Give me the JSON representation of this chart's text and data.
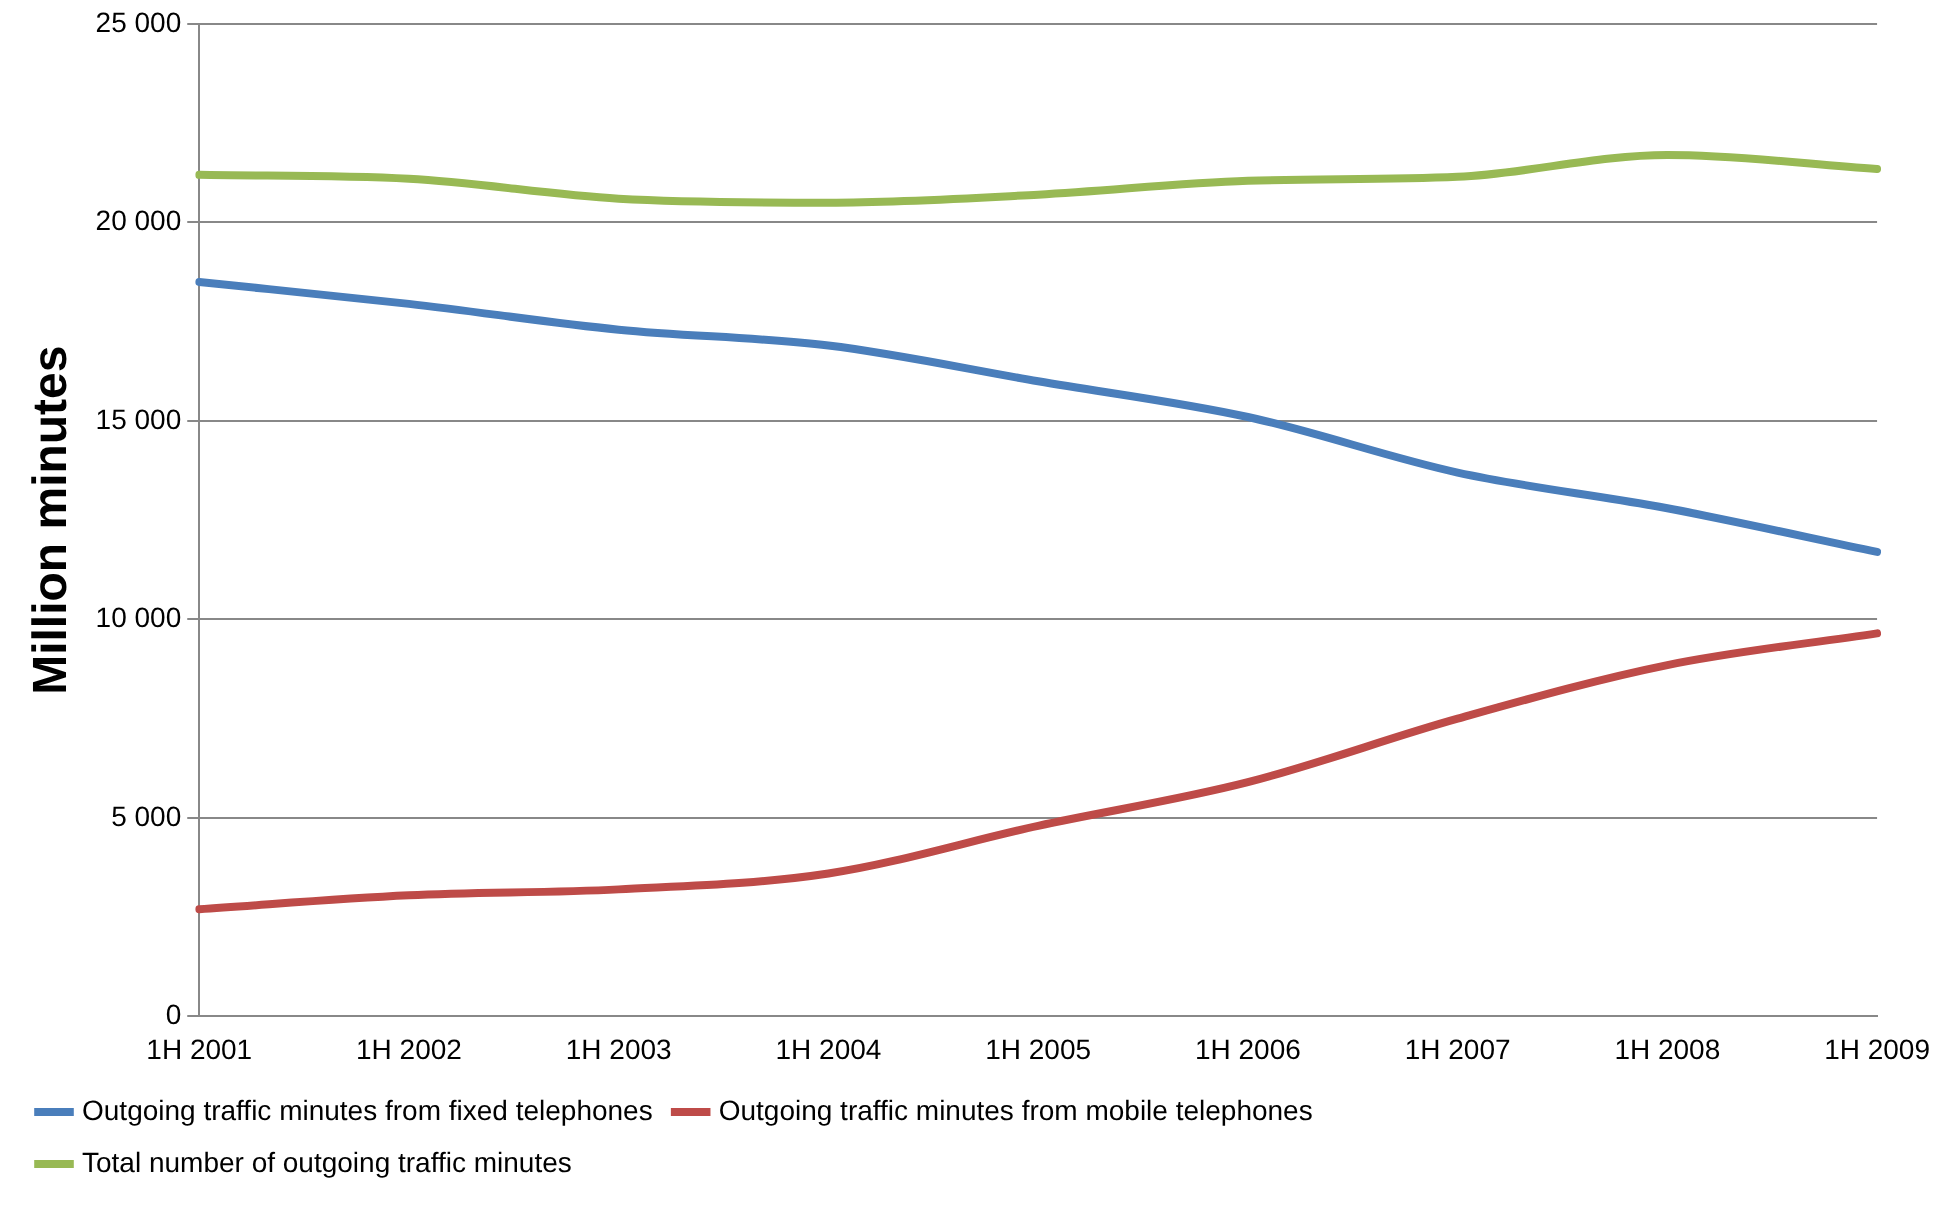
{
  "chart_data": {
    "type": "line",
    "ylabel": "Million minutes",
    "categories": [
      "1H 2001",
      "1H 2002",
      "1H 2003",
      "1H 2004",
      "1H 2005",
      "1H 2006",
      "1H 2007",
      "1H 2008",
      "1H 2009"
    ],
    "series": [
      {
        "name": "Outgoing traffic minutes from fixed telephones",
        "color": "#4a7ebb",
        "values": [
          18500,
          17950,
          17300,
          16900,
          16000,
          15100,
          13700,
          12800,
          11700
        ]
      },
      {
        "name": "Outgoing traffic minutes from mobile telephones",
        "color": "#be4b48",
        "values": [
          2700,
          3050,
          3200,
          3600,
          4800,
          5900,
          7500,
          8850,
          9650
        ]
      },
      {
        "name": "Total number of outgoing traffic minutes",
        "color": "#98b954",
        "values": [
          21200,
          21100,
          20600,
          20500,
          20700,
          21050,
          21150,
          21700,
          21350
        ]
      }
    ],
    "ylim": [
      0,
      25000
    ],
    "yticks": [
      {
        "value": 0,
        "label": "0"
      },
      {
        "value": 5000,
        "label": "5 000"
      },
      {
        "value": 10000,
        "label": "10 000"
      },
      {
        "value": 15000,
        "label": "15 000"
      },
      {
        "value": 20000,
        "label": "20 000"
      },
      {
        "value": 25000,
        "label": "25 000"
      }
    ],
    "grid": "y",
    "legend": "bottom",
    "marker": "none",
    "line_style": "solid"
  }
}
